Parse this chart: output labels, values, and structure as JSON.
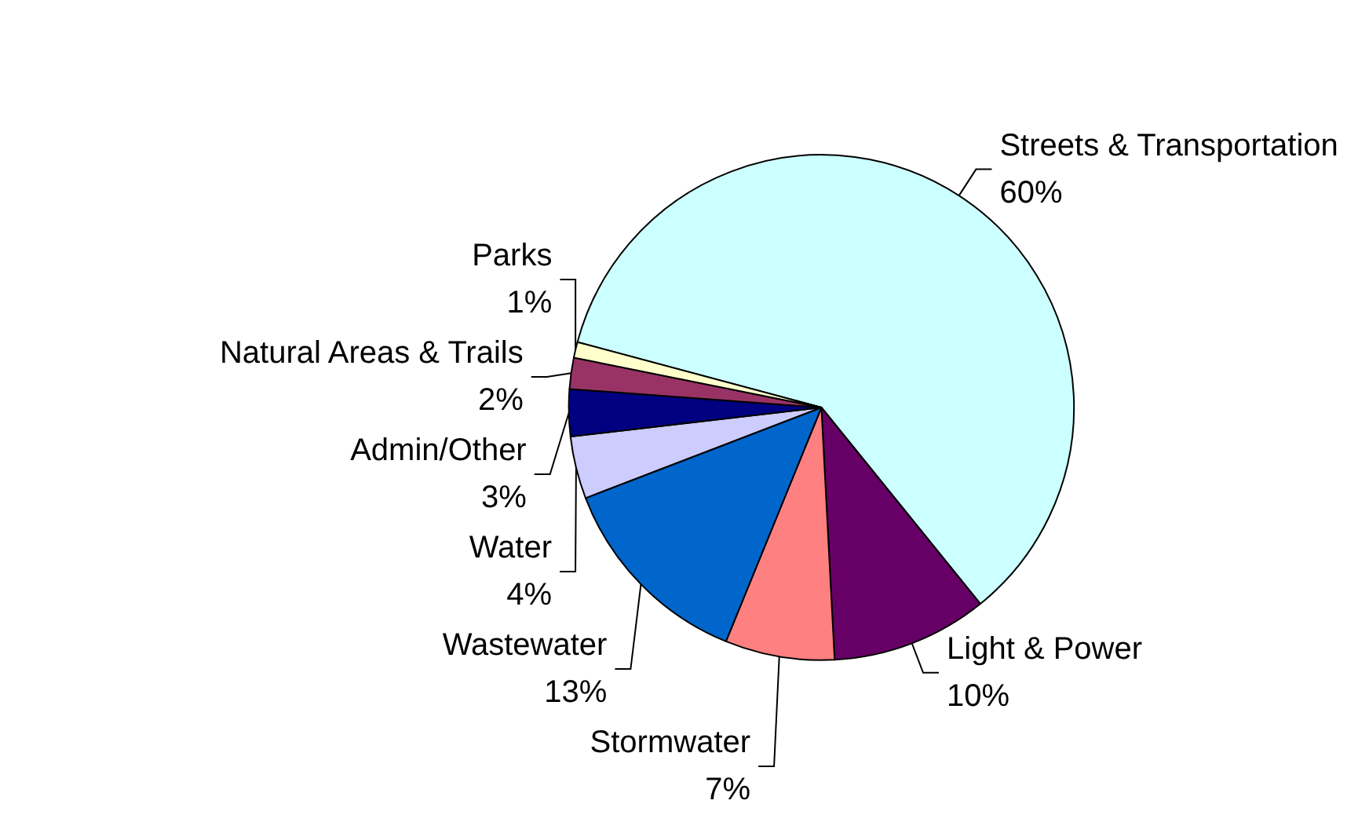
{
  "chart_data": {
    "type": "pie",
    "categories": [
      "Streets & Transportation",
      "Light & Power",
      "Stormwater",
      "Wastewater",
      "Water",
      "Admin/Other",
      "Natural Areas & Trails",
      "Parks"
    ],
    "values": [
      60,
      10,
      7,
      13,
      4,
      3,
      2,
      1
    ],
    "colors": [
      "#ccffff",
      "#660066",
      "#ff8080",
      "#0066cc",
      "#ccccff",
      "#000080",
      "#993366",
      "#ffffcc"
    ],
    "value_labels": [
      "60%",
      "10%",
      "7%",
      "13%",
      "4%",
      "3%",
      "2%",
      "1%"
    ]
  }
}
